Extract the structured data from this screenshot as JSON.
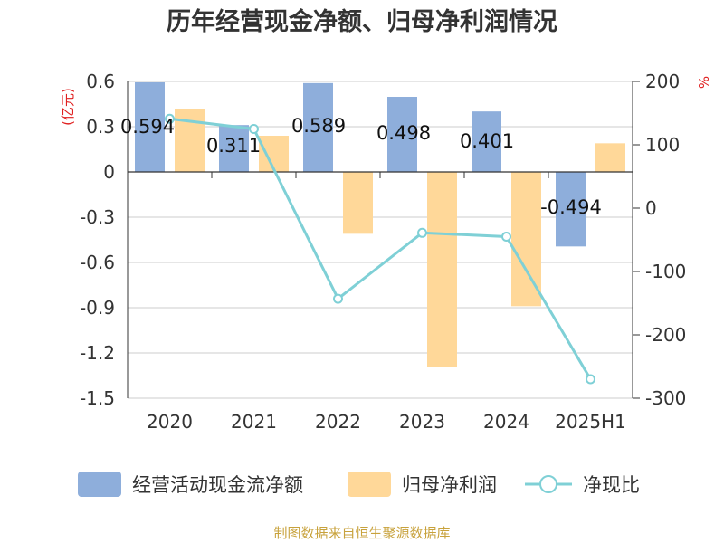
{
  "chart_data": {
    "type": "bar",
    "title": "历年经营现金净额、归母净利润情况",
    "categories": [
      "2020",
      "2021",
      "2022",
      "2023",
      "2024",
      "2025H1"
    ],
    "series": [
      {
        "name": "经营活动现金流净额",
        "type": "bar",
        "axis": "left",
        "color": "#8eaedb",
        "values": [
          0.594,
          0.311,
          0.589,
          0.498,
          0.401,
          -0.494
        ],
        "labels": [
          "0.594",
          "0.311",
          "0.589",
          "0.498",
          "0.401",
          "-0.494"
        ]
      },
      {
        "name": "归母净利润",
        "type": "bar",
        "axis": "left",
        "color": "#ffd899",
        "values": [
          0.42,
          0.24,
          -0.41,
          -1.29,
          -0.89,
          0.19
        ]
      },
      {
        "name": "净现比",
        "type": "line",
        "axis": "right",
        "color": "#7fd0d6",
        "values": [
          141,
          125,
          -143,
          -39,
          -45,
          -270
        ]
      }
    ],
    "y_left": {
      "unit": "(亿元)",
      "ylim": [
        -1.5,
        0.6
      ],
      "ticks": [
        "0.6",
        "0.3",
        "0",
        "-0.3",
        "-0.6",
        "-0.9",
        "-1.2",
        "-1.5"
      ]
    },
    "y_right": {
      "unit": "%",
      "ylim": [
        -300,
        200
      ],
      "ticks": [
        "200",
        "100",
        "0",
        "-100",
        "-200",
        "-300"
      ]
    },
    "grid": true,
    "legend_position": "bottom",
    "source": "制图数据来自恒生聚源数据库"
  }
}
